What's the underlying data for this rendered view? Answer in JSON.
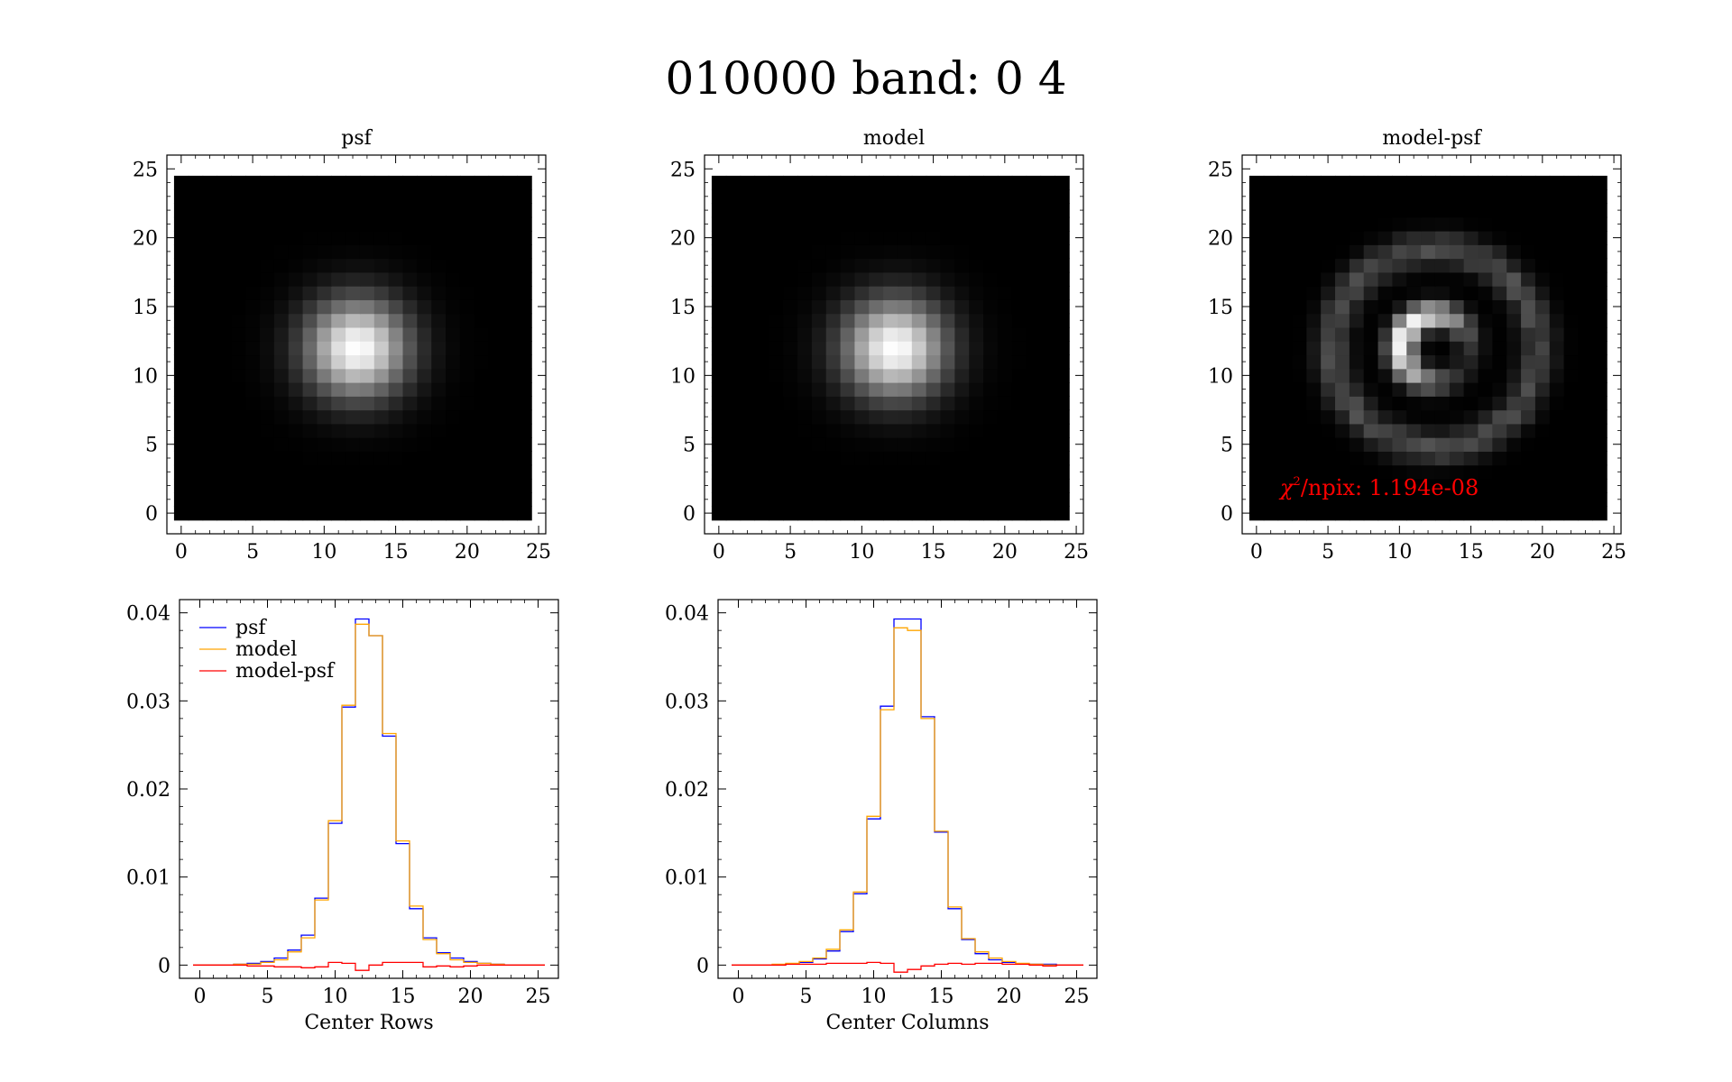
{
  "figure_title": "010000 band: 0 4",
  "colors": {
    "psf": "#0000ff",
    "model": "#ffa500",
    "residual": "#ff0000",
    "annotation": "#ff0000"
  },
  "chart_data": [
    {
      "type": "heatmap",
      "title": "psf",
      "xlim": [
        -1,
        25.5
      ],
      "ylim": [
        -1.5,
        26
      ],
      "xticks": [
        "0",
        "5",
        "10",
        "15",
        "20",
        "25"
      ],
      "yticks": [
        "0",
        "5",
        "10",
        "15",
        "20",
        "25"
      ],
      "grid": false,
      "colormap": "grayscale",
      "image": {
        "size": 25,
        "kind": "gaussian",
        "center": [
          12.3,
          12.0
        ],
        "sigma": 2.3
      }
    },
    {
      "type": "heatmap",
      "title": "model",
      "xlim": [
        -1,
        25.5
      ],
      "ylim": [
        -1.5,
        26
      ],
      "xticks": [
        "0",
        "5",
        "10",
        "15",
        "20",
        "25"
      ],
      "yticks": [
        "0",
        "5",
        "10",
        "15",
        "20",
        "25"
      ],
      "grid": false,
      "colormap": "grayscale",
      "image": {
        "size": 25,
        "kind": "gaussian",
        "center": [
          12.3,
          12.0
        ],
        "sigma": 2.3
      }
    },
    {
      "type": "heatmap",
      "title": "model-psf",
      "xlim": [
        -1,
        25.5
      ],
      "ylim": [
        -1.5,
        26
      ],
      "xticks": [
        "0",
        "5",
        "10",
        "15",
        "20",
        "25"
      ],
      "yticks": [
        "0",
        "5",
        "10",
        "15",
        "20",
        "25"
      ],
      "grid": false,
      "colormap": "grayscale",
      "image": {
        "size": 25,
        "kind": "ring-residual",
        "center": [
          12.5,
          12.0
        ]
      },
      "annotation": {
        "symbol": "χ",
        "superscript": "2",
        "text": "/npix: 1.194e-08"
      }
    },
    {
      "type": "line",
      "step": true,
      "xlabel": "Center Rows",
      "xlim": [
        -1.5,
        26.5
      ],
      "ylim": [
        -0.0015,
        0.0415
      ],
      "xticks": [
        "0",
        "5",
        "10",
        "15",
        "20",
        "25"
      ],
      "yticks": [
        "0",
        "0.01",
        "0.02",
        "0.03",
        "0.04"
      ],
      "ytick_values": [
        0,
        0.01,
        0.02,
        0.03,
        0.04
      ],
      "grid": false,
      "legend": "top-left",
      "x": [
        0,
        1,
        2,
        3,
        4,
        5,
        6,
        7,
        8,
        9,
        10,
        11,
        12,
        13,
        14,
        15,
        16,
        17,
        18,
        19,
        20,
        21,
        22,
        23,
        24,
        25
      ],
      "series": [
        {
          "name": "psf",
          "color_key": "psf",
          "values": [
            0,
            0,
            0,
            0.0001,
            0.0002,
            0.0004,
            0.0008,
            0.0017,
            0.0034,
            0.0076,
            0.0161,
            0.0293,
            0.0393,
            0.0374,
            0.026,
            0.0138,
            0.0064,
            0.0031,
            0.0014,
            0.0008,
            0.0004,
            0.0002,
            0.0001,
            0,
            0,
            0
          ]
        },
        {
          "name": "model",
          "color_key": "model",
          "values": [
            0,
            0,
            0,
            0.0001,
            0.0001,
            0.0003,
            0.0006,
            0.0015,
            0.0031,
            0.0074,
            0.0164,
            0.0295,
            0.0387,
            0.0374,
            0.0263,
            0.0141,
            0.0067,
            0.0029,
            0.0013,
            0.0006,
            0.0003,
            0.0002,
            0.0001,
            0,
            0,
            0
          ]
        },
        {
          "name": "model-psf",
          "color_key": "residual",
          "values": [
            0,
            0,
            0,
            0,
            -0.0001,
            -0.0001,
            -0.0002,
            -0.0002,
            -0.0003,
            -0.0002,
            0.0003,
            0.0002,
            -0.0006,
            0,
            0.0003,
            0.0003,
            0.0003,
            -0.0002,
            -0.0001,
            -0.0002,
            -0.0001,
            0,
            0,
            0,
            0,
            0
          ]
        }
      ]
    },
    {
      "type": "line",
      "step": true,
      "xlabel": "Center Columns",
      "xlim": [
        -1.5,
        26.5
      ],
      "ylim": [
        -0.0015,
        0.0415
      ],
      "xticks": [
        "0",
        "5",
        "10",
        "15",
        "20",
        "25"
      ],
      "yticks": [
        "0",
        "0.01",
        "0.02",
        "0.03",
        "0.04"
      ],
      "ytick_values": [
        0,
        0.01,
        0.02,
        0.03,
        0.04
      ],
      "grid": false,
      "x": [
        0,
        1,
        2,
        3,
        4,
        5,
        6,
        7,
        8,
        9,
        10,
        11,
        12,
        13,
        14,
        15,
        16,
        17,
        18,
        19,
        20,
        21,
        22,
        23,
        24,
        25
      ],
      "series": [
        {
          "name": "psf",
          "color_key": "psf",
          "values": [
            0,
            0,
            0,
            0,
            0.0001,
            0.0003,
            0.0007,
            0.0016,
            0.0038,
            0.0081,
            0.0166,
            0.0294,
            0.0393,
            0.0393,
            0.0282,
            0.0151,
            0.0064,
            0.0029,
            0.0013,
            0.0006,
            0.0003,
            0.0001,
            0.0001,
            0.0001,
            0,
            0
          ]
        },
        {
          "name": "model",
          "color_key": "model",
          "values": [
            0,
            0,
            0,
            0.0001,
            0.0002,
            0.0004,
            0.0008,
            0.0018,
            0.004,
            0.0083,
            0.0169,
            0.029,
            0.0383,
            0.038,
            0.028,
            0.0152,
            0.0066,
            0.003,
            0.0015,
            0.0008,
            0.0004,
            0.0002,
            0.0001,
            0,
            0,
            0
          ]
        },
        {
          "name": "model-psf",
          "color_key": "residual",
          "values": [
            0,
            0,
            0,
            0,
            0.0001,
            0.0001,
            0.0001,
            0.0002,
            0.0002,
            0.0002,
            0.0003,
            0.0002,
            -0.0008,
            -0.0005,
            -0.0001,
            0.0001,
            0.0002,
            0.0001,
            0.0002,
            0.0002,
            0.0001,
            0.0001,
            0,
            -0.0001,
            0,
            0
          ]
        }
      ]
    }
  ]
}
